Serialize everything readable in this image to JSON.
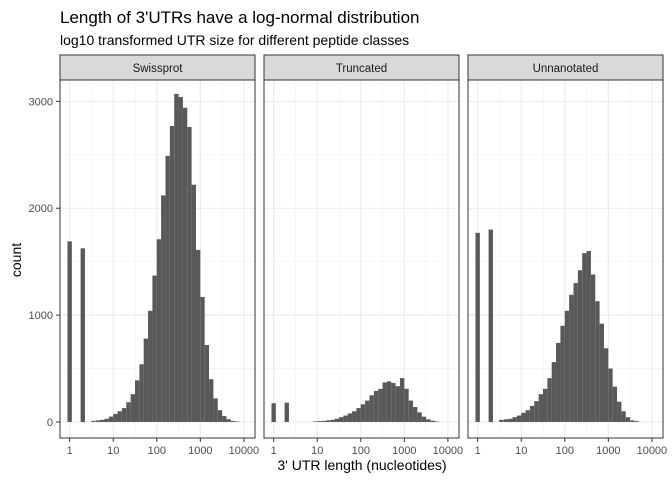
{
  "chart_data": {
    "type": "bar",
    "title": "Length of 3'UTRs have a log-normal distribution",
    "subtitle": "log10 transformed UTR size for different peptide classes",
    "xlabel": "3' UTR length (nucleotides)",
    "ylabel": "count",
    "x_scale": "log10",
    "xlim": [
      0.6,
      18000
    ],
    "ylim": [
      -150,
      3200
    ],
    "x_ticks": [
      1,
      10,
      100,
      1000,
      10000
    ],
    "x_tick_labels": [
      "1",
      "10",
      "100",
      "1000",
      "10000"
    ],
    "y_ticks": [
      0,
      1000,
      2000,
      3000
    ],
    "y_tick_labels": [
      "0",
      "1000",
      "2000",
      "3000"
    ],
    "grid": true,
    "bar_color": "#595959",
    "bin_log10_width": 0.1,
    "panels": [
      {
        "name": "Swissprot",
        "bins": [
          {
            "x": 1,
            "count": 1690
          },
          {
            "x": 2,
            "count": 1625
          },
          {
            "x": 3.5,
            "count": 10
          },
          {
            "x": 4.47,
            "count": 15
          },
          {
            "x": 5.62,
            "count": 20
          },
          {
            "x": 7.08,
            "count": 30
          },
          {
            "x": 8.91,
            "count": 50
          },
          {
            "x": 11.2,
            "count": 75
          },
          {
            "x": 14.1,
            "count": 100
          },
          {
            "x": 17.8,
            "count": 130
          },
          {
            "x": 22.4,
            "count": 185
          },
          {
            "x": 28.2,
            "count": 260
          },
          {
            "x": 35.5,
            "count": 390
          },
          {
            "x": 44.7,
            "count": 540
          },
          {
            "x": 56.2,
            "count": 780
          },
          {
            "x": 70.8,
            "count": 1040
          },
          {
            "x": 89.1,
            "count": 1370
          },
          {
            "x": 112,
            "count": 1710
          },
          {
            "x": 141,
            "count": 2120
          },
          {
            "x": 178,
            "count": 2490
          },
          {
            "x": 224,
            "count": 2770
          },
          {
            "x": 282,
            "count": 3070
          },
          {
            "x": 355,
            "count": 3040
          },
          {
            "x": 447,
            "count": 2940
          },
          {
            "x": 562,
            "count": 2760
          },
          {
            "x": 708,
            "count": 2220
          },
          {
            "x": 891,
            "count": 1610
          },
          {
            "x": 1122,
            "count": 1170
          },
          {
            "x": 1413,
            "count": 720
          },
          {
            "x": 1778,
            "count": 400
          },
          {
            "x": 2239,
            "count": 220
          },
          {
            "x": 2818,
            "count": 110
          },
          {
            "x": 3548,
            "count": 55
          },
          {
            "x": 4467,
            "count": 25
          },
          {
            "x": 5623,
            "count": 10
          },
          {
            "x": 7079,
            "count": 5
          }
        ]
      },
      {
        "name": "Truncated",
        "bins": [
          {
            "x": 1,
            "count": 175
          },
          {
            "x": 2,
            "count": 180
          },
          {
            "x": 8.91,
            "count": 5
          },
          {
            "x": 11.2,
            "count": 8
          },
          {
            "x": 14.1,
            "count": 10
          },
          {
            "x": 17.8,
            "count": 15
          },
          {
            "x": 22.4,
            "count": 20
          },
          {
            "x": 28.2,
            "count": 30
          },
          {
            "x": 35.5,
            "count": 45
          },
          {
            "x": 44.7,
            "count": 60
          },
          {
            "x": 56.2,
            "count": 80
          },
          {
            "x": 70.8,
            "count": 100
          },
          {
            "x": 89.1,
            "count": 130
          },
          {
            "x": 112,
            "count": 165
          },
          {
            "x": 141,
            "count": 200
          },
          {
            "x": 178,
            "count": 250
          },
          {
            "x": 224,
            "count": 290
          },
          {
            "x": 282,
            "count": 310
          },
          {
            "x": 355,
            "count": 370
          },
          {
            "x": 447,
            "count": 380
          },
          {
            "x": 562,
            "count": 365
          },
          {
            "x": 708,
            "count": 335
          },
          {
            "x": 891,
            "count": 410
          },
          {
            "x": 1122,
            "count": 310
          },
          {
            "x": 1413,
            "count": 200
          },
          {
            "x": 1778,
            "count": 140
          },
          {
            "x": 2239,
            "count": 90
          },
          {
            "x": 2818,
            "count": 50
          },
          {
            "x": 3548,
            "count": 25
          },
          {
            "x": 4467,
            "count": 12
          },
          {
            "x": 5623,
            "count": 5
          }
        ]
      },
      {
        "name": "Unnanotated",
        "bins": [
          {
            "x": 1,
            "count": 1770
          },
          {
            "x": 2,
            "count": 1800
          },
          {
            "x": 3.5,
            "count": 20
          },
          {
            "x": 4.47,
            "count": 25
          },
          {
            "x": 5.62,
            "count": 30
          },
          {
            "x": 7.08,
            "count": 45
          },
          {
            "x": 8.91,
            "count": 60
          },
          {
            "x": 11.2,
            "count": 85
          },
          {
            "x": 14.1,
            "count": 110
          },
          {
            "x": 17.8,
            "count": 150
          },
          {
            "x": 22.4,
            "count": 195
          },
          {
            "x": 28.2,
            "count": 260
          },
          {
            "x": 35.5,
            "count": 310
          },
          {
            "x": 44.7,
            "count": 410
          },
          {
            "x": 56.2,
            "count": 560
          },
          {
            "x": 70.8,
            "count": 740
          },
          {
            "x": 89.1,
            "count": 900
          },
          {
            "x": 112,
            "count": 1040
          },
          {
            "x": 141,
            "count": 1190
          },
          {
            "x": 178,
            "count": 1300
          },
          {
            "x": 224,
            "count": 1420
          },
          {
            "x": 282,
            "count": 1580
          },
          {
            "x": 355,
            "count": 1600
          },
          {
            "x": 447,
            "count": 1380
          },
          {
            "x": 562,
            "count": 1130
          },
          {
            "x": 708,
            "count": 920
          },
          {
            "x": 891,
            "count": 690
          },
          {
            "x": 1122,
            "count": 500
          },
          {
            "x": 1413,
            "count": 330
          },
          {
            "x": 1778,
            "count": 190
          },
          {
            "x": 2239,
            "count": 100
          },
          {
            "x": 2818,
            "count": 45
          },
          {
            "x": 3548,
            "count": 15
          },
          {
            "x": 4467,
            "count": 8
          }
        ]
      }
    ]
  }
}
